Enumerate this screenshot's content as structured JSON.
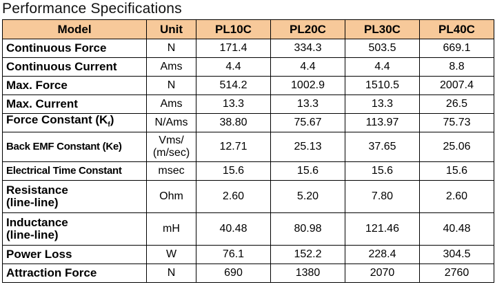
{
  "title": "Performance Specifications",
  "headers": [
    "Model",
    "Unit",
    "PL10C",
    "PL20C",
    "PL30C",
    "PL40C"
  ],
  "rows": [
    {
      "label": "Continuous Force",
      "unit": "N",
      "values": [
        "171.4",
        "334.3",
        "503.5",
        "669.1"
      ]
    },
    {
      "label": "Continuous Current",
      "unit": "Ams",
      "values": [
        "4.4",
        "4.4",
        "4.4",
        "8.8"
      ]
    },
    {
      "label": "Max. Force",
      "unit": "N",
      "values": [
        "514.2",
        "1002.9",
        "1510.5",
        "2007.4"
      ]
    },
    {
      "label": "Max. Current",
      "unit": "Ams",
      "values": [
        "13.3",
        "13.3",
        "13.3",
        "26.5"
      ]
    },
    {
      "label": "Force Constant (K",
      "label_sub": "f",
      "label_tail": ")",
      "unit": "N/Ams",
      "values": [
        "38.80",
        "75.67",
        "113.97",
        "75.73"
      ]
    },
    {
      "label": "Back EMF Constant (Ke)",
      "unit": "Vms/\n(m/sec)",
      "values": [
        "12.71",
        "25.13",
        "37.65",
        "25.06"
      ]
    },
    {
      "label": "Electrical Time Constant",
      "unit": "msec",
      "values": [
        "15.6",
        "15.6",
        "15.6",
        "15.6"
      ]
    },
    {
      "label": "Resistance\n(line-line)",
      "unit": "Ohm",
      "values": [
        "2.60",
        "5.20",
        "7.80",
        "2.60"
      ]
    },
    {
      "label": "Inductance\n(line-line)",
      "unit": "mH",
      "values": [
        "40.48",
        "80.98",
        "121.46",
        "40.48"
      ]
    },
    {
      "label": "Power Loss",
      "unit": "W",
      "values": [
        "76.1",
        "152.2",
        "228.4",
        "304.5"
      ]
    },
    {
      "label": "Attraction Force",
      "unit": "N",
      "values": [
        "690",
        "1380",
        "2070",
        "2760"
      ]
    }
  ]
}
